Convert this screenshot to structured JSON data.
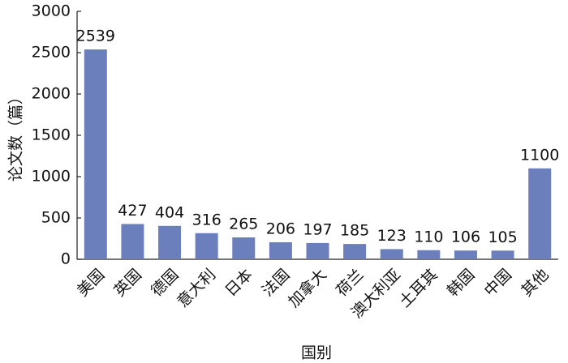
{
  "chart_data": {
    "type": "bar",
    "x_label": "国别",
    "y_label": "论文数（篇）",
    "categories": [
      "美国",
      "英国",
      "德国",
      "意大利",
      "日本",
      "法国",
      "加拿大",
      "荷兰",
      "澳大利亚",
      "土耳其",
      "韩国",
      "中国",
      "其他"
    ],
    "values": [
      2539,
      427,
      404,
      316,
      265,
      206,
      197,
      185,
      123,
      110,
      106,
      105,
      1100
    ],
    "color": "#6a7fbb",
    "ylim": [
      0,
      3000
    ],
    "yticks": [
      0,
      500,
      1000,
      1500,
      2000,
      2500,
      3000
    ],
    "grid": false
  }
}
